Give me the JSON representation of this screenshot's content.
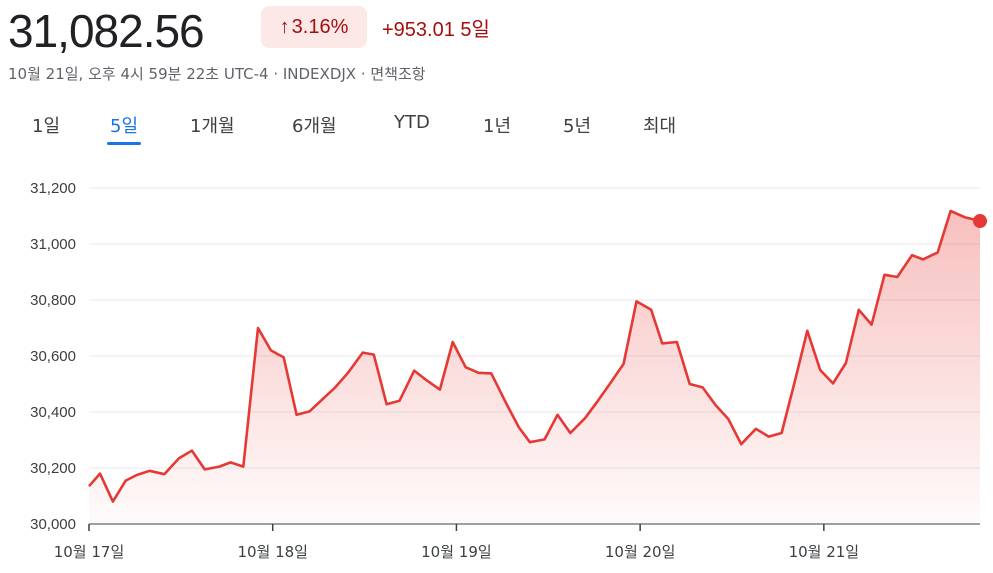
{
  "header": {
    "price": "31,082.56",
    "change_pct": "3.16%",
    "change_abs": "+953.01",
    "period": "5일",
    "meta": "10월 21일, 오후 4시 59분 22초 UTC-4 · INDEXDJX · 면책조항"
  },
  "tabs": [
    {
      "label": "1일",
      "active": false
    },
    {
      "label": "5일",
      "active": true
    },
    {
      "label": "1개월",
      "active": false
    },
    {
      "label": "6개월",
      "active": false
    },
    {
      "label": "YTD",
      "active": false
    },
    {
      "label": "1년",
      "active": false
    },
    {
      "label": "5년",
      "active": false
    },
    {
      "label": "최대",
      "active": false
    }
  ],
  "colors": {
    "line": "#e53935",
    "badge_bg": "#fce8e6",
    "down_text": "#a50e0e",
    "active_tab": "#1a73e8"
  },
  "chart_data": {
    "type": "area",
    "title": "",
    "xlabel": "",
    "ylabel": "",
    "ylim": [
      30000,
      31200
    ],
    "yticks": [
      "31,200",
      "31,000",
      "30,800",
      "30,600",
      "30,400",
      "30,200",
      "30,000"
    ],
    "ytick_values": [
      31200,
      31000,
      30800,
      30600,
      30400,
      30200,
      30000
    ],
    "xlim": [
      0,
      4.85
    ],
    "xticks": [
      {
        "label": "10월 17일",
        "x": 0
      },
      {
        "label": "10월 18일",
        "x": 1
      },
      {
        "label": "10월 19일",
        "x": 2
      },
      {
        "label": "10월 20일",
        "x": 3
      },
      {
        "label": "10월 21일",
        "x": 4
      }
    ],
    "grid": true,
    "series": [
      {
        "x": [
          0.0,
          0.06,
          0.13,
          0.2,
          0.26,
          0.33,
          0.41,
          0.49,
          0.56,
          0.63,
          0.71,
          0.77,
          0.84,
          0.92,
          0.99,
          1.06,
          1.13,
          1.2,
          1.27,
          1.34,
          1.41,
          1.49,
          1.55,
          1.62,
          1.69,
          1.77,
          1.84,
          1.91,
          1.98,
          2.05,
          2.12,
          2.19,
          2.27,
          2.34,
          2.4,
          2.48,
          2.55,
          2.62,
          2.7,
          2.77,
          2.84,
          2.91,
          2.98,
          3.06,
          3.12,
          3.2,
          3.27,
          3.34,
          3.41,
          3.48,
          3.55,
          3.63,
          3.7,
          3.77,
          3.84,
          3.91,
          3.98,
          4.05,
          4.12,
          4.19,
          4.26,
          4.33,
          4.4,
          4.48,
          4.54,
          4.62,
          4.69,
          4.77,
          4.85
        ],
        "values": [
          30135,
          30180,
          30080,
          30155,
          30175,
          30190,
          30178,
          30235,
          30262,
          30195,
          30205,
          30220,
          30205,
          30700,
          30620,
          30595,
          30390,
          30402,
          30445,
          30488,
          30540,
          30612,
          30605,
          30428,
          30440,
          30548,
          30512,
          30480,
          30650,
          30560,
          30540,
          30538,
          30432,
          30345,
          30292,
          30302,
          30390,
          30325,
          30378,
          30440,
          30505,
          30572,
          30795,
          30765,
          30645,
          30650,
          30500,
          30488,
          30425,
          30375,
          30285,
          30340,
          30312,
          30325,
          30505,
          30690,
          30550,
          30502,
          30575,
          30765,
          30712,
          30890,
          30882,
          30960,
          30945,
          30970,
          31118,
          31095,
          31082
        ]
      }
    ]
  }
}
